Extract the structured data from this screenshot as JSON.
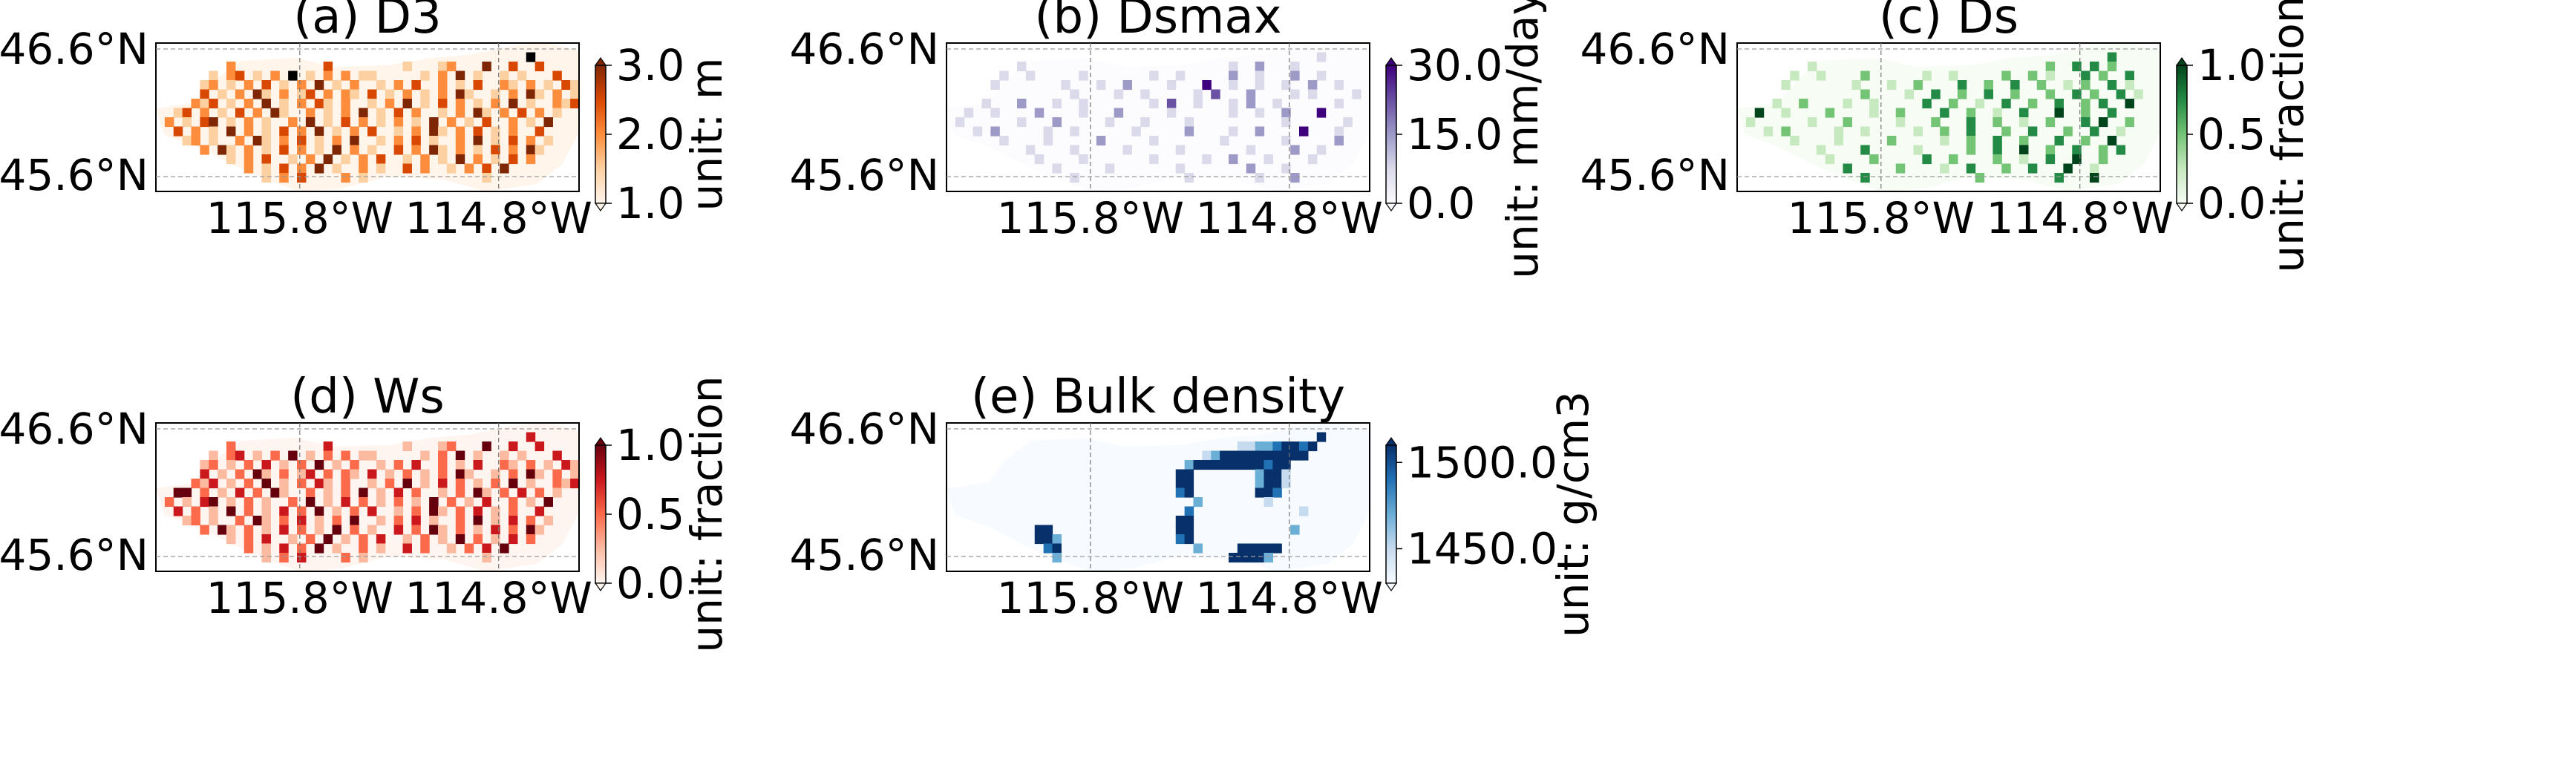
{
  "colors": {
    "oranges": [
      "#fff5eb",
      "#fdd0a2",
      "#fd8d3c",
      "#d94801",
      "#7f2704"
    ],
    "purples": [
      "#fcfbfd",
      "#dadaeb",
      "#9e9ac8",
      "#6a51a3",
      "#3f007d"
    ],
    "greens": [
      "#f7fcf5",
      "#c7e9c0",
      "#74c476",
      "#238b45",
      "#00441b"
    ],
    "reds": [
      "#fff5f0",
      "#fcbba1",
      "#fb6a4a",
      "#cb181d",
      "#67000d"
    ],
    "blues": [
      "#f7fbff",
      "#c6dbef",
      "#6baed6",
      "#2171b5",
      "#08306b"
    ]
  },
  "chart_data": [
    {
      "id": "a",
      "type": "heatmap",
      "title": "(a) D3",
      "colormap": "oranges",
      "y_ticks": [
        "46.6°N",
        "45.6°N"
      ],
      "x_ticks": [
        "115.8°W",
        "114.8°W"
      ],
      "colorbar": {
        "label": "unit: m",
        "ticks": [
          "3.0",
          "2.0",
          "1.0"
        ],
        "range": [
          1.0,
          3.0
        ]
      },
      "values": [
        "................................................",
        "..........................................5.....",
        "........2..........3........1...12...4..3..3....",
        "......1.23.1.2.5.1.2.2.11.....1.2.4.1..1.1...3..",
        ".....12.1.2.3.1.2.4.1.2..1.2.3..2.1.3..21.2.1.31",
        ".....3.1.2.41.2.13.2.21.3.1.2.1.2.41..1.2.41.2.1",
        "....213.1.2.4.1.2.31.2..1.2.4.1.3.2.1.2.4.1..213",
        "..13.2.1.3.2.41..2.1.2.4.1.3.2..1.2.41.2.3.2.1..",
        ".2.1.34.1.2.1..2.4.1.3.2.1.2.1.4.2.1.3..2.1.4...",
        "..3.2.1.4.2.1.3.2.4.1.2.3..1.2.41.2.3.1.2..3....",
        "...12.1..2.41.2.3.1.2.4..1.2.3.1..2.4.1.3.2.1...",
        ".....2.41.2.1.3.2.1.4.2.1..3.2.41.2.1.3.2.41....",
        "........1.2.3..1.2.4.1.2.3..1.2.1.4.2.1.3.2.....",
        "..........2.1.3.2.4.1..2.1..3.2..1.2.3.4........",
        "............1.2.3....2.1.............1..........",
        "................................................"
      ]
    },
    {
      "id": "b",
      "type": "heatmap",
      "title": "(b) Dsmax",
      "colormap": "purples",
      "y_ticks": [
        "46.6°N",
        "45.6°N"
      ],
      "x_ticks": [
        "115.8°W",
        "114.8°W"
      ],
      "colorbar": {
        "label": "unit: mm/day",
        "ticks": [
          "30.0",
          "15.0",
          "0.0"
        ],
        "range": [
          0.0,
          30.0
        ]
      },
      "values": [
        "................................................",
        "..........................................1.....",
        "........1.......................1..2...1.......",
        "......1..1.....1.......1..1.....2..1...2..1.....",
        ".....1.......1...1..2....1...4..1..1..1..2..1...",
        "..............1....1..1.....1.3...2....1.1....1.",
        "....1...2...1..1.......1.3..1...1.2..1......1...",
        "..1..1....2....1...2.....1......1..1..2...4.....",
        ".1......1...2.....1...1....1..........1......1..",
        "...1.2.....1..1......1.....2....1..2....4...1...",
        "......1....1.....2.....1.......1......1.....2...",
        ".........1....1.....1.....1.......1....2..1.....",
        "..........1....1.......1.....1..2...1....1......",
        "............1.....1.......1.......2...1.........",
        "..............1............1.......1...2.......",
        "................................................"
      ]
    },
    {
      "id": "c",
      "type": "heatmap",
      "title": "(c) Ds",
      "colormap": "greens",
      "y_ticks": [
        "46.6°N",
        "45.6°N"
      ],
      "x_ticks": [
        "115.8°W",
        "114.8°W"
      ],
      "colorbar": {
        "label": "unit: fraction",
        "ticks": [
          "1.0",
          "0.5",
          "0.0"
        ],
        "range": [
          0.0,
          1.0
        ]
      },
      "values": [
        "................................................",
        "..........................................3.....",
        "........1..........................2..3.3.2....",
        "......1..1....2......1..1.....2..2.1...3.2..3...",
        ".....1.......1...1..2....3..2..3..2..1.2..3.1...",
        "..............2....1..3..2..3..2...2..3.2..3.1..",
        "....1..2....1..1.....3..2..1..3..2..3..2.3..4...",
        "..4..1....2....1..2....3..2..1..3...4..2..3.....",
        ".1......1...2.....1...2...3..2..1..2...3.4..2..",
        "...1.2.....1..1.....1..2..3...2..3...2..3..1...",
        "......1....1.....2.....1..2..3..2...3..2..4.....",
        ".........1....3.....1.....2..3..4..2..3..2.3....",
        "..........1....2.....3..2....2..1..3..4..2......",
        "............3.....2....1..3...2..3...4..1.......",
        "..............3............2........3...4.......",
        "................................................"
      ]
    },
    {
      "id": "d",
      "type": "heatmap",
      "title": "(d) Ws",
      "colormap": "reds",
      "y_ticks": [
        "46.6°N",
        "45.6°N"
      ],
      "x_ticks": [
        "115.8°W",
        "114.8°W"
      ],
      "colorbar": {
        "label": "unit: fraction",
        "ticks": [
          "1.0",
          "0.5",
          "0.0"
        ],
        "range": [
          0.0,
          1.0
        ]
      },
      "values": [
        "................................................",
        "..........................................3.....",
        "........2..........3........1...12...4..3..3....",
        "......1.23.1.2.4.1.2.2.11.....1.2.4.1..1.1...3..",
        ".....12.1.2.3.1.2.4.1.2..1.2.3..2.1.3..21.2.1.31",
        ".....3.1.2.41.2.13.2.21.3.1.2.1.2.41..1.2.41.2.1",
        "....213.1.2.4.1.2.31.2..1.2.4.1.3.2.1.2.4.1..213",
        "..44.2.1.3.2.41..2.1.2.4.1.3.2..1.2.41.2.3.2.1..",
        ".2.1.34.1.2.1..2.4.1.3.2.1.2.1.4.2.1.3..2.1.4...",
        "..3.2.1.4.2.1.3.2.4.1.2.3..1.2.41.2.3.1.2..3....",
        "...12.1..2.41.2.3.1.2.4..1.2.3.1..2.4.1.3.2.1...",
        ".....2.41.2.1.3.2.1.4.2.1..3.2.41.2.1.3.2.41....",
        "........1.2.3..1.2.4.1.2.3..1.2.1.4.2.1.3.2.....",
        "..........2.1.3.2.4.1..2.1..3.2..1.2.3.4........",
        "............1.2.3....2.1.............1..........",
        "................................................"
      ]
    },
    {
      "id": "e",
      "type": "heatmap",
      "title": "(e) Bulk density",
      "colormap": "blues",
      "y_ticks": [
        "46.6°N",
        "45.6°N"
      ],
      "x_ticks": [
        "115.8°W",
        "114.8°W"
      ],
      "colorbar": {
        "label": "unit: g/cm3",
        "ticks": [
          "1500.0",
          "1450.0"
        ],
        "range": [
          1430.0,
          1510.0
        ]
      },
      "values": [
        "................................................",
        "..........................................4.....",
        ".................................112234434......",
        ".............................124444444444.......",
        "...........................244444444344.........",
        "..........................44.......2441.........",
        "..........................44.......2441.........",
        "..........................34.......443..........",
        "............................2.......1...........",
        "...........................3............1.......",
        "..........................44....................",
        "..........44..............44...........2........",
        "..........442.............34....................",
        "...........34...............2....44444..........",
        "............2...................44442..........",
        "................................................"
      ]
    }
  ]
}
